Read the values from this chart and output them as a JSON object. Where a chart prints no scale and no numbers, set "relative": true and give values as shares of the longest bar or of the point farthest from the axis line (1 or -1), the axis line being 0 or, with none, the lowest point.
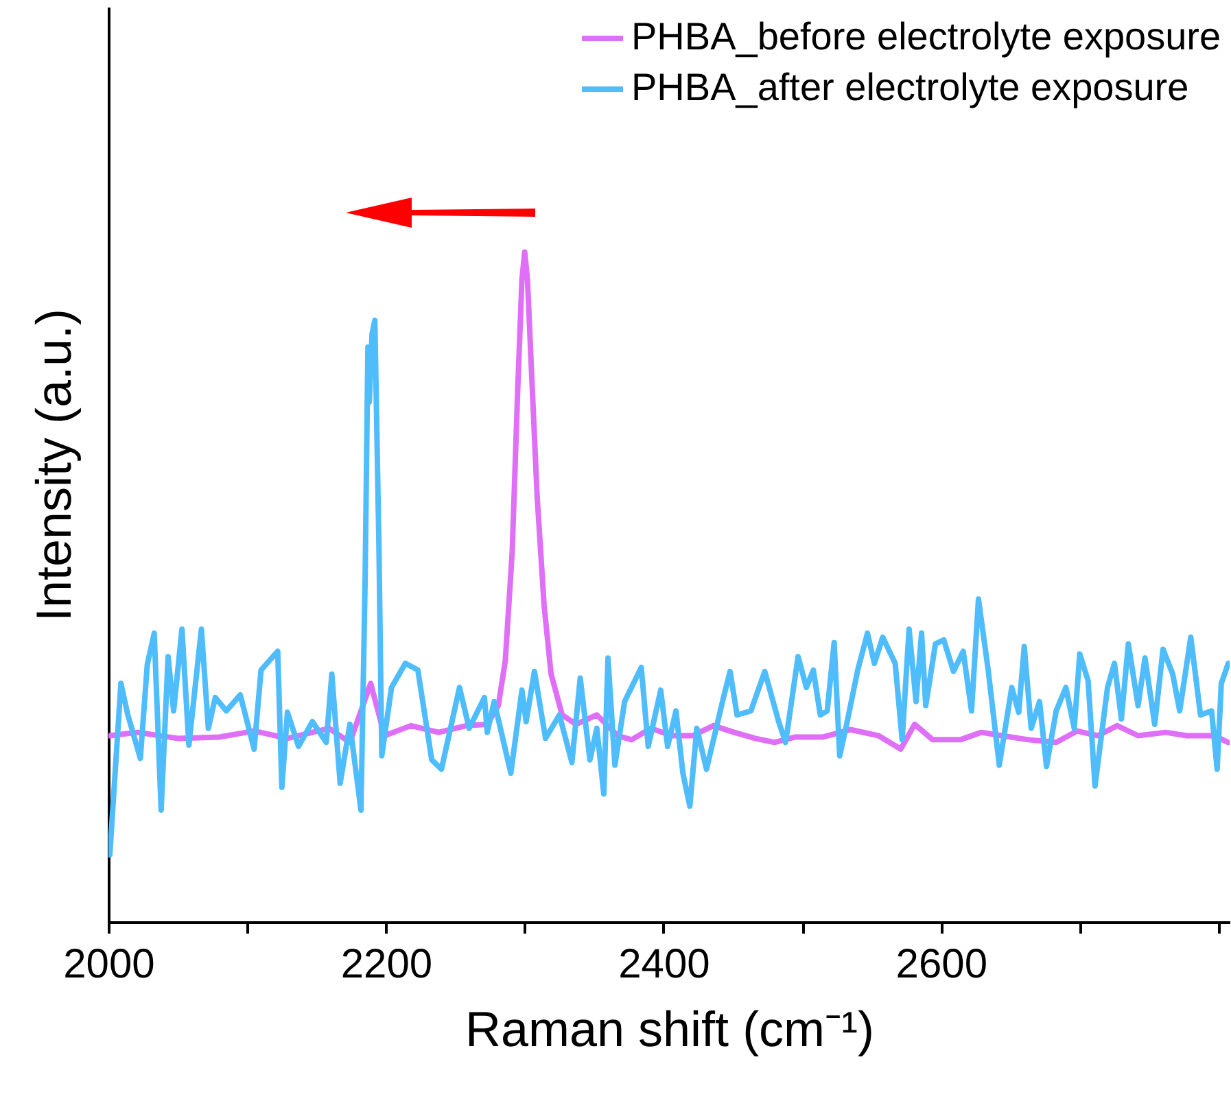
{
  "chart_data": {
    "type": "line",
    "xlabel": "Raman shift (cm⁻¹)",
    "ylabel": "Intensity (a.u.)",
    "relative": true,
    "tick_labels": "x",
    "legend": "top right",
    "xlim": [
      2000,
      2808
    ],
    "xticks": [
      2000,
      {
        "value": 2100,
        "label": null
      },
      2200,
      {
        "value": 2300,
        "label": null
      },
      2400,
      {
        "value": 2500,
        "label": null
      },
      2600,
      {
        "value": 2700,
        "label": null
      },
      {
        "value": 2800,
        "label": null
      }
    ],
    "series": [
      {
        "name": "PHBA_before electrolyte exposure",
        "color": "#df6ff7",
        "x": [
          2001,
          2021,
          2050,
          2080,
          2105,
          2129,
          2159,
          2174,
          2189,
          2199,
          2218,
          2238,
          2258,
          2273,
          2281,
          2286,
          2291,
          2295,
          2298,
          2300,
          2302,
          2305,
          2309,
          2314,
          2319,
          2327,
          2337,
          2352,
          2367,
          2377,
          2391,
          2406,
          2421,
          2436,
          2451,
          2466,
          2480,
          2495,
          2515,
          2535,
          2555,
          2571,
          2581,
          2594,
          2614,
          2629,
          2644,
          2663,
          2683,
          2698,
          2713,
          2727,
          2742,
          2762,
          2777,
          2797,
          2807
        ],
        "values": [
          0.278,
          0.283,
          0.274,
          0.276,
          0.285,
          0.274,
          0.289,
          0.268,
          0.356,
          0.278,
          0.293,
          0.283,
          0.293,
          0.295,
          0.323,
          0.39,
          0.553,
          0.797,
          0.959,
          1,
          0.959,
          0.817,
          0.634,
          0.472,
          0.37,
          0.309,
          0.295,
          0.309,
          0.278,
          0.272,
          0.289,
          0.278,
          0.278,
          0.293,
          0.283,
          0.274,
          0.268,
          0.276,
          0.276,
          0.287,
          0.278,
          0.258,
          0.295,
          0.272,
          0.272,
          0.283,
          0.278,
          0.272,
          0.268,
          0.285,
          0.278,
          0.293,
          0.278,
          0.283,
          0.278,
          0.278,
          0.268
        ]
      },
      {
        "name": "PHBA_after electrolyte exposure",
        "color": "#4fbcfc",
        "x": [
          2001,
          2009,
          2014,
          2023,
          2028,
          2033,
          2038,
          2043,
          2047,
          2053,
          2058,
          2067,
          2072,
          2077,
          2085,
          2095,
          2105,
          2110,
          2122,
          2125,
          2129,
          2137,
          2147,
          2157,
          2161,
          2167,
          2174,
          2182,
          2185,
          2187,
          2188,
          2190,
          2192,
          2195,
          2197,
          2204,
          2214,
          2223,
          2233,
          2240,
          2253,
          2260,
          2271,
          2273,
          2278,
          2290,
          2298,
          2301,
          2307,
          2315,
          2325,
          2334,
          2340,
          2347,
          2352,
          2357,
          2360,
          2365,
          2372,
          2384,
          2389,
          2398,
          2403,
          2409,
          2414,
          2419,
          2424,
          2431,
          2443,
          2448,
          2453,
          2463,
          2473,
          2483,
          2488,
          2497,
          2503,
          2508,
          2513,
          2518,
          2523,
          2527,
          2532,
          2540,
          2547,
          2552,
          2558,
          2567,
          2572,
          2577,
          2582,
          2586,
          2589,
          2596,
          2602,
          2609,
          2616,
          2622,
          2627,
          2634,
          2642,
          2651,
          2656,
          2660,
          2665,
          2671,
          2676,
          2683,
          2690,
          2696,
          2700,
          2706,
          2711,
          2720,
          2725,
          2730,
          2735,
          2742,
          2747,
          2754,
          2760,
          2767,
          2772,
          2780,
          2787,
          2795,
          2799,
          2802,
          2807
        ],
        "values": [
          0.1,
          0.356,
          0.309,
          0.244,
          0.384,
          0.431,
          0.167,
          0.396,
          0.315,
          0.437,
          0.264,
          0.437,
          0.289,
          0.335,
          0.315,
          0.339,
          0.258,
          0.376,
          0.404,
          0.201,
          0.313,
          0.262,
          0.299,
          0.268,
          0.37,
          0.207,
          0.295,
          0.167,
          0.512,
          0.858,
          0.776,
          0.878,
          0.898,
          0.553,
          0.248,
          0.35,
          0.386,
          0.376,
          0.242,
          0.228,
          0.35,
          0.289,
          0.335,
          0.283,
          0.329,
          0.222,
          0.346,
          0.299,
          0.374,
          0.274,
          0.309,
          0.238,
          0.364,
          0.242,
          0.289,
          0.191,
          0.394,
          0.234,
          0.329,
          0.38,
          0.262,
          0.346,
          0.262,
          0.315,
          0.222,
          0.173,
          0.289,
          0.228,
          0.333,
          0.374,
          0.309,
          0.315,
          0.374,
          0.299,
          0.268,
          0.396,
          0.35,
          0.376,
          0.309,
          0.315,
          0.417,
          0.248,
          0.295,
          0.376,
          0.431,
          0.386,
          0.425,
          0.386,
          0.272,
          0.437,
          0.329,
          0.431,
          0.323,
          0.415,
          0.421,
          0.374,
          0.404,
          0.315,
          0.482,
          0.376,
          0.234,
          0.35,
          0.313,
          0.411,
          0.289,
          0.329,
          0.232,
          0.315,
          0.35,
          0.289,
          0.4,
          0.36,
          0.203,
          0.35,
          0.386,
          0.303,
          0.415,
          0.323,
          0.394,
          0.295,
          0.407,
          0.37,
          0.315,
          0.425,
          0.309,
          0.315,
          0.228,
          0.356,
          0.386
        ]
      }
    ]
  }
}
